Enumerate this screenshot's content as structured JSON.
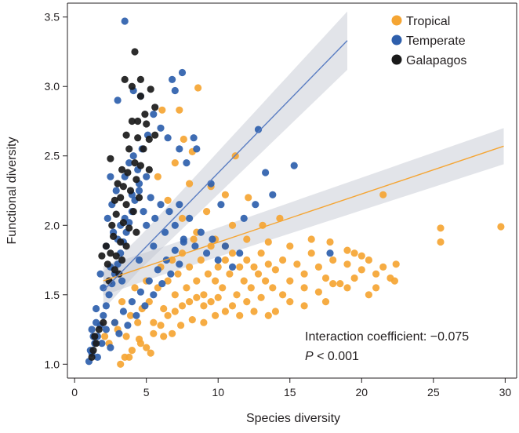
{
  "chart_data": {
    "type": "scatter",
    "title": "",
    "xlabel": "Species diversity",
    "ylabel": "Functional diversity",
    "xlim": [
      -0.5,
      30.8
    ],
    "ylim": [
      0.9,
      3.6
    ],
    "xticks": [
      0,
      5,
      10,
      15,
      20,
      25,
      30
    ],
    "xtick_labels": [
      "0",
      "5",
      "10",
      "15",
      "20",
      "25",
      "30"
    ],
    "yticks": [
      1.0,
      1.5,
      2.0,
      2.5,
      3.0,
      3.5
    ],
    "ytick_labels": [
      "1.0",
      "1.5",
      "2.0",
      "2.5",
      "3.0",
      "3.5"
    ],
    "grid": false,
    "legend_position": "top-right",
    "series": [
      {
        "name": "Tropical",
        "color": "#f5a533",
        "points": [
          [
            2.1,
            1.2
          ],
          [
            2.4,
            1.15
          ],
          [
            2.8,
            1.3
          ],
          [
            3.0,
            1.25
          ],
          [
            3.3,
            1.45
          ],
          [
            3.6,
            1.2
          ],
          [
            3.9,
            1.35
          ],
          [
            4.2,
            1.55
          ],
          [
            4.4,
            1.3
          ],
          [
            4.7,
            1.4
          ],
          [
            5.0,
            1.6
          ],
          [
            5.2,
            1.45
          ],
          [
            5.5,
            1.3
          ],
          [
            5.8,
            1.55
          ],
          [
            6.0,
            1.7
          ],
          [
            6.2,
            1.4
          ],
          [
            6.5,
            1.6
          ],
          [
            6.8,
            1.75
          ],
          [
            7.0,
            1.5
          ],
          [
            7.2,
            1.65
          ],
          [
            7.5,
            1.8
          ],
          [
            7.8,
            1.55
          ],
          [
            8.0,
            1.7
          ],
          [
            8.3,
            1.9
          ],
          [
            8.5,
            1.6
          ],
          [
            8.8,
            1.75
          ],
          [
            9.0,
            1.5
          ],
          [
            9.3,
            1.65
          ],
          [
            9.5,
            1.85
          ],
          [
            9.8,
            1.6
          ],
          [
            10.0,
            1.7
          ],
          [
            10.3,
            1.55
          ],
          [
            10.5,
            1.75
          ],
          [
            10.8,
            1.65
          ],
          [
            11.0,
            1.8
          ],
          [
            11.3,
            1.5
          ],
          [
            11.5,
            1.7
          ],
          [
            11.8,
            1.6
          ],
          [
            12.0,
            1.75
          ],
          [
            12.3,
            1.55
          ],
          [
            12.5,
            1.7
          ],
          [
            12.8,
            1.65
          ],
          [
            13.0,
            1.8
          ],
          [
            13.3,
            1.6
          ],
          [
            13.5,
            1.72
          ],
          [
            13.8,
            1.55
          ],
          [
            14.0,
            1.68
          ],
          [
            14.5,
            1.75
          ],
          [
            15.0,
            1.6
          ],
          [
            15.5,
            1.72
          ],
          [
            16.0,
            1.65
          ],
          [
            16.5,
            1.8
          ],
          [
            17.0,
            1.7
          ],
          [
            17.5,
            1.62
          ],
          [
            18.0,
            1.75
          ],
          [
            18.5,
            1.58
          ],
          [
            19.0,
            1.72
          ],
          [
            19.5,
            1.8
          ],
          [
            20.0,
            1.68
          ],
          [
            20.5,
            1.75
          ],
          [
            21.0,
            1.65
          ],
          [
            21.5,
            1.7
          ],
          [
            22.0,
            1.62
          ],
          [
            22.4,
            1.72
          ],
          [
            21.5,
            2.22
          ],
          [
            25.5,
            1.98
          ],
          [
            25.5,
            1.88
          ],
          [
            29.7,
            1.99
          ],
          [
            8.6,
            2.99
          ],
          [
            7.3,
            2.83
          ],
          [
            6.1,
            2.83
          ],
          [
            7.6,
            2.62
          ],
          [
            8.2,
            2.53
          ],
          [
            11.2,
            2.5
          ],
          [
            9.5,
            2.28
          ],
          [
            10.5,
            2.22
          ],
          [
            12.1,
            2.2
          ],
          [
            14.3,
            2.05
          ],
          [
            13.1,
            2.0
          ],
          [
            11.0,
            2.0
          ],
          [
            9.2,
            2.1
          ],
          [
            8.0,
            2.3
          ],
          [
            7.0,
            2.45
          ],
          [
            6.5,
            2.18
          ],
          [
            5.8,
            2.35
          ],
          [
            7.5,
            2.05
          ],
          [
            8.5,
            1.95
          ],
          [
            9.8,
            1.9
          ],
          [
            10.5,
            1.85
          ],
          [
            12.0,
            1.9
          ],
          [
            13.5,
            1.88
          ],
          [
            15.0,
            1.85
          ],
          [
            16.5,
            1.9
          ],
          [
            17.8,
            1.88
          ],
          [
            19.0,
            1.82
          ],
          [
            20.0,
            1.78
          ],
          [
            3.5,
            1.05
          ],
          [
            4.0,
            1.1
          ],
          [
            4.5,
            1.18
          ],
          [
            5.0,
            1.12
          ],
          [
            5.5,
            1.22
          ],
          [
            6.0,
            1.28
          ],
          [
            6.5,
            1.35
          ],
          [
            7.0,
            1.38
          ],
          [
            7.5,
            1.42
          ],
          [
            8.0,
            1.45
          ],
          [
            8.5,
            1.48
          ],
          [
            9.0,
            1.42
          ],
          [
            9.5,
            1.45
          ],
          [
            10.0,
            1.48
          ],
          [
            11.0,
            1.42
          ],
          [
            12.0,
            1.45
          ],
          [
            13.0,
            1.48
          ],
          [
            14.0,
            1.38
          ],
          [
            15.0,
            1.45
          ],
          [
            16.0,
            1.55
          ],
          [
            17.0,
            1.52
          ],
          [
            18.0,
            1.58
          ],
          [
            19.5,
            1.62
          ],
          [
            21.0,
            1.55
          ],
          [
            22.3,
            1.6
          ],
          [
            20.5,
            1.5
          ],
          [
            19.0,
            1.55
          ],
          [
            17.5,
            1.45
          ],
          [
            16.0,
            1.42
          ],
          [
            14.5,
            1.5
          ],
          [
            13.5,
            1.35
          ],
          [
            12.5,
            1.38
          ],
          [
            11.5,
            1.35
          ],
          [
            10.5,
            1.38
          ],
          [
            3.2,
            1.0
          ],
          [
            3.8,
            1.05
          ],
          [
            4.6,
            1.15
          ],
          [
            5.3,
            1.08
          ],
          [
            6.2,
            1.2
          ],
          [
            6.8,
            1.22
          ],
          [
            7.4,
            1.28
          ],
          [
            8.2,
            1.32
          ],
          [
            9.0,
            1.3
          ],
          [
            9.8,
            1.35
          ]
        ]
      },
      {
        "name": "Temperate",
        "color": "#2e5fac",
        "points": [
          [
            1.0,
            1.02
          ],
          [
            1.2,
            1.08
          ],
          [
            1.4,
            1.15
          ],
          [
            1.6,
            1.2
          ],
          [
            1.8,
            1.28
          ],
          [
            2.0,
            1.35
          ],
          [
            2.2,
            1.42
          ],
          [
            2.4,
            1.5
          ],
          [
            2.6,
            1.58
          ],
          [
            2.8,
            1.65
          ],
          [
            3.0,
            1.72
          ],
          [
            3.2,
            1.8
          ],
          [
            3.4,
            1.88
          ],
          [
            3.6,
            1.95
          ],
          [
            3.8,
            2.02
          ],
          [
            4.0,
            2.1
          ],
          [
            4.2,
            2.18
          ],
          [
            4.5,
            2.25
          ],
          [
            4.8,
            2.1
          ],
          [
            5.0,
            2.0
          ],
          [
            5.3,
            2.2
          ],
          [
            5.6,
            2.05
          ],
          [
            6.0,
            2.15
          ],
          [
            6.3,
            1.95
          ],
          [
            6.6,
            2.1
          ],
          [
            7.0,
            2.0
          ],
          [
            7.3,
            2.15
          ],
          [
            7.6,
            1.9
          ],
          [
            8.0,
            2.05
          ],
          [
            8.4,
            1.85
          ],
          [
            8.8,
            1.95
          ],
          [
            9.2,
            1.8
          ],
          [
            9.6,
            1.9
          ],
          [
            10.0,
            1.75
          ],
          [
            10.5,
            1.85
          ],
          [
            11.0,
            1.7
          ],
          [
            11.5,
            1.8
          ],
          [
            1.5,
            1.4
          ],
          [
            2.0,
            1.55
          ],
          [
            2.5,
            1.7
          ],
          [
            3.0,
            1.9
          ],
          [
            3.5,
            2.05
          ],
          [
            4.0,
            2.22
          ],
          [
            4.5,
            2.3
          ],
          [
            5.0,
            2.35
          ],
          [
            3.5,
            3.47
          ],
          [
            4.1,
            2.97
          ],
          [
            4.6,
            2.93
          ],
          [
            5.5,
            2.8
          ],
          [
            6.0,
            2.7
          ],
          [
            7.5,
            3.1
          ],
          [
            7.0,
            2.97
          ],
          [
            6.8,
            3.05
          ],
          [
            6.5,
            2.63
          ],
          [
            7.3,
            2.55
          ],
          [
            8.3,
            2.63
          ],
          [
            8.5,
            2.55
          ],
          [
            7.8,
            2.45
          ],
          [
            12.8,
            2.69
          ],
          [
            13.3,
            2.38
          ],
          [
            15.3,
            2.43
          ],
          [
            13.8,
            2.22
          ],
          [
            12.6,
            2.15
          ],
          [
            11.8,
            2.05
          ],
          [
            17.8,
            1.8
          ],
          [
            9.5,
            2.3
          ],
          [
            10.2,
            2.15
          ],
          [
            1.1,
            1.1
          ],
          [
            1.3,
            1.2
          ],
          [
            1.6,
            1.05
          ],
          [
            1.9,
            1.15
          ],
          [
            2.2,
            1.25
          ],
          [
            2.5,
            1.12
          ],
          [
            2.8,
            1.3
          ],
          [
            3.1,
            1.22
          ],
          [
            3.4,
            1.38
          ],
          [
            3.7,
            1.28
          ],
          [
            4.0,
            1.45
          ],
          [
            4.3,
            1.35
          ],
          [
            4.6,
            1.52
          ],
          [
            4.9,
            1.42
          ],
          [
            5.2,
            1.6
          ],
          [
            5.5,
            1.5
          ],
          [
            5.8,
            1.68
          ],
          [
            6.1,
            1.58
          ],
          [
            6.4,
            1.75
          ],
          [
            6.7,
            1.65
          ],
          [
            7.0,
            1.82
          ],
          [
            7.3,
            1.72
          ],
          [
            7.6,
            1.88
          ],
          [
            2.3,
            2.05
          ],
          [
            2.6,
            2.15
          ],
          [
            2.9,
            2.25
          ],
          [
            3.2,
            2.0
          ],
          [
            3.5,
            2.35
          ],
          [
            3.8,
            2.45
          ],
          [
            4.1,
            2.5
          ],
          [
            4.4,
            2.4
          ],
          [
            4.7,
            2.55
          ],
          [
            5.1,
            2.65
          ],
          [
            3.0,
            2.9
          ],
          [
            2.5,
            2.35
          ],
          [
            2.2,
            1.85
          ],
          [
            1.8,
            1.65
          ],
          [
            1.5,
            1.3
          ],
          [
            1.2,
            1.25
          ],
          [
            2.7,
            1.95
          ],
          [
            3.3,
            1.6
          ],
          [
            4.5,
            1.75
          ],
          [
            5.5,
            1.85
          ]
        ]
      },
      {
        "name": "Galapagos",
        "color": "#1a1a1a",
        "points": [
          [
            4.2,
            3.25
          ],
          [
            3.5,
            3.05
          ],
          [
            4.0,
            3.0
          ],
          [
            4.6,
            2.93
          ],
          [
            5.3,
            2.98
          ],
          [
            5.6,
            2.85
          ],
          [
            4.9,
            2.8
          ],
          [
            4.4,
            2.75
          ],
          [
            5.0,
            2.73
          ],
          [
            5.6,
            2.65
          ],
          [
            4.4,
            2.63
          ],
          [
            3.8,
            2.55
          ],
          [
            4.2,
            2.45
          ],
          [
            4.6,
            2.43
          ],
          [
            5.2,
            2.4
          ],
          [
            2.5,
            2.48
          ],
          [
            3.7,
            2.38
          ],
          [
            4.3,
            2.33
          ],
          [
            3.9,
            2.25
          ],
          [
            4.5,
            2.2
          ],
          [
            3.2,
            2.2
          ],
          [
            3.6,
            2.15
          ],
          [
            4.1,
            2.1
          ],
          [
            2.9,
            2.08
          ],
          [
            3.4,
            2.02
          ],
          [
            3.8,
            1.98
          ],
          [
            4.3,
            1.95
          ],
          [
            2.7,
            1.92
          ],
          [
            3.2,
            1.88
          ],
          [
            3.6,
            1.85
          ],
          [
            2.5,
            1.8
          ],
          [
            2.9,
            1.78
          ],
          [
            3.3,
            1.75
          ],
          [
            2.3,
            1.72
          ],
          [
            2.8,
            1.68
          ],
          [
            3.1,
            1.65
          ],
          [
            2.4,
            1.6
          ],
          [
            1.9,
            1.78
          ],
          [
            2.2,
            1.85
          ],
          [
            2.6,
            2.0
          ],
          [
            3.0,
            2.3
          ],
          [
            3.4,
            2.28
          ],
          [
            4.8,
            2.55
          ],
          [
            5.2,
            2.62
          ],
          [
            4.0,
            2.75
          ],
          [
            3.3,
            2.4
          ],
          [
            2.8,
            2.18
          ],
          [
            1.5,
            1.15
          ],
          [
            1.3,
            1.1
          ],
          [
            1.4,
            1.2
          ],
          [
            1.7,
            1.25
          ],
          [
            2.0,
            1.3
          ],
          [
            1.2,
            1.05
          ],
          [
            4.6,
            3.05
          ],
          [
            3.6,
            2.65
          ]
        ]
      }
    ],
    "regression_lines": [
      {
        "name": "Tropical",
        "color": "#f5a533",
        "x": [
          2.0,
          29.9
        ],
        "y": [
          1.6,
          2.57
        ]
      },
      {
        "name": "Temperate",
        "color": "#5a7dc2",
        "x": [
          2.0,
          19.0
        ],
        "y": [
          1.53,
          3.33
        ]
      }
    ],
    "annotations": {
      "line1": "Interaction coefficient: −0.075",
      "line2_italic": "P",
      "line2_rest": " < 0.001"
    }
  }
}
